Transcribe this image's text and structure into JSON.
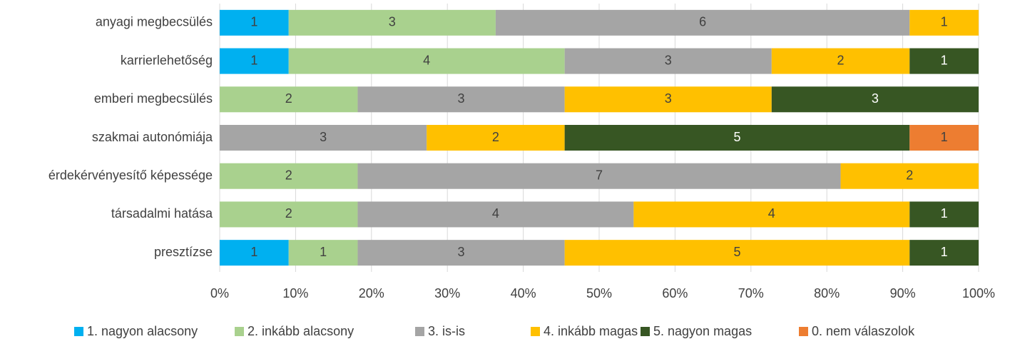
{
  "chart_data": {
    "type": "stacked_barh",
    "stack": "percent",
    "categories": [
      "anyagi megbecsülés",
      "karrierlehetőség",
      "emberi megbecsülés",
      "szakmai autonómiája",
      "érdekérvényesítő képessége",
      "társadalmi hatása",
      "presztízse"
    ],
    "series": [
      {
        "name": "1. nagyon alacsony",
        "color": "#00b0f0",
        "values": [
          1,
          1,
          0,
          0,
          0,
          0,
          1
        ]
      },
      {
        "name": "2. inkább alacsony",
        "color": "#a9d18e",
        "values": [
          3,
          4,
          2,
          0,
          2,
          2,
          1
        ]
      },
      {
        "name": "3. is-is",
        "color": "#a5a5a5",
        "values": [
          6,
          3,
          3,
          3,
          7,
          4,
          3
        ]
      },
      {
        "name": "4. inkább magas",
        "color": "#ffc000",
        "values": [
          1,
          2,
          3,
          2,
          2,
          4,
          5
        ]
      },
      {
        "name": "5. nagyon magas",
        "color": "#375623",
        "values": [
          0,
          1,
          3,
          5,
          0,
          1,
          1
        ]
      },
      {
        "name": "0. nem válaszolok",
        "color": "#ed7d31",
        "values": [
          0,
          0,
          0,
          1,
          0,
          0,
          0
        ]
      }
    ],
    "xlim": [
      0,
      100
    ],
    "xticks": [
      {
        "value": 0,
        "label": "0%"
      },
      {
        "value": 10,
        "label": "10%"
      },
      {
        "value": 20,
        "label": "20%"
      },
      {
        "value": 30,
        "label": "30%"
      },
      {
        "value": 40,
        "label": "40%"
      },
      {
        "value": 50,
        "label": "50%"
      },
      {
        "value": 60,
        "label": "60%"
      },
      {
        "value": 70,
        "label": "70%"
      },
      {
        "value": 80,
        "label": "80%"
      },
      {
        "value": 90,
        "label": "90%"
      },
      {
        "value": 100,
        "label": "100%"
      }
    ],
    "grid": true,
    "legend": "bottom"
  }
}
